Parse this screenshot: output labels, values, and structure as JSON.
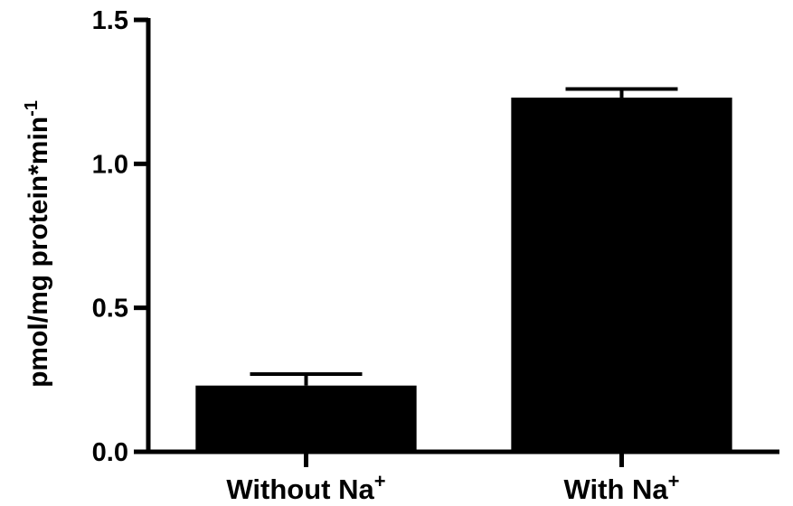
{
  "chart_data": {
    "type": "bar",
    "categories": [
      {
        "label": "Without Na",
        "superscript": "+"
      },
      {
        "label": "With Na",
        "superscript": "+"
      }
    ],
    "values": [
      0.23,
      1.23
    ],
    "error_upper": [
      0.04,
      0.03
    ],
    "ylabel": {
      "text": "pmol/mg protein*min",
      "superscript": "-1"
    },
    "ylim": [
      0,
      1.5
    ],
    "yticks": [
      {
        "value": 0,
        "label": "0.0"
      },
      {
        "value": 0.5,
        "label": "0.5"
      },
      {
        "value": 1.0,
        "label": "1.0"
      },
      {
        "value": 1.5,
        "label": "1.5"
      }
    ],
    "bar_color": "#000000",
    "grid": false,
    "legend": "none"
  }
}
